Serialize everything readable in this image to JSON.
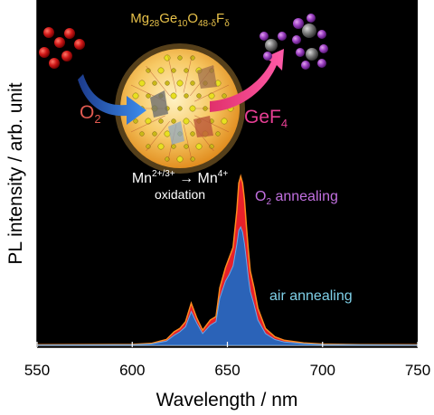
{
  "chart_data": {
    "type": "area",
    "xlabel": "Wavelength / nm",
    "ylabel": "PL intensity / arb. unit",
    "xlim": [
      550,
      750
    ],
    "x_ticks": [
      550,
      600,
      650,
      700,
      750
    ],
    "y_ticks_shown": false,
    "grid": false,
    "background": "black",
    "series": [
      {
        "name": "O2 annealing",
        "color": "#e8202a",
        "x": [
          550,
          600,
          610,
          618,
          622,
          625,
          628,
          631,
          634,
          637,
          641,
          644,
          646,
          649,
          651,
          653,
          655,
          656,
          657,
          658,
          659,
          660,
          661,
          662,
          664,
          666,
          670,
          675,
          680,
          690,
          700,
          720,
          750
        ],
        "y": [
          0.4,
          0.6,
          1.2,
          3.5,
          8.0,
          10.0,
          14.0,
          25.0,
          16.0,
          9.0,
          15.0,
          17.0,
          34.0,
          46.0,
          52.0,
          58.0,
          80.0,
          96.0,
          100.0,
          96.0,
          86.0,
          70.0,
          56.0,
          44.0,
          34.0,
          22.0,
          10.0,
          5.0,
          3.0,
          1.5,
          0.8,
          0.5,
          0.4
        ]
      },
      {
        "name": "air annealing",
        "color": "#2b63b8",
        "x": [
          550,
          600,
          610,
          618,
          622,
          625,
          628,
          631,
          634,
          637,
          641,
          644,
          646,
          649,
          651,
          653,
          655,
          656,
          657,
          658,
          659,
          660,
          661,
          662,
          664,
          666,
          670,
          675,
          680,
          690,
          700,
          720,
          750
        ],
        "y": [
          0.2,
          0.3,
          0.8,
          2.5,
          6.0,
          8.0,
          11.0,
          20.0,
          13.0,
          7.0,
          12.0,
          14.0,
          28.0,
          38.0,
          42.0,
          47.0,
          60.0,
          68.0,
          70.0,
          67.0,
          60.0,
          50.0,
          40.0,
          32.0,
          24.0,
          15.0,
          7.0,
          3.5,
          2.0,
          1.0,
          0.5,
          0.3,
          0.2
        ]
      }
    ],
    "annotations": {
      "formula_main": "Mg",
      "formula_sub1": "28",
      "formula_mid1": "Ge",
      "formula_sub2": "10",
      "formula_mid2": "O",
      "formula_sub3": "48-δ",
      "formula_mid3": "F",
      "formula_sub4": "δ",
      "o2_main": "O",
      "o2_sub": "2",
      "gef_main": "GeF",
      "gef_sub": "4",
      "mn_left": "Mn",
      "mn_left_sup": "2+/3+",
      "mn_arrow": " → ",
      "mn_right": "Mn",
      "mn_right_sup": "4+",
      "oxidation": "oxidation",
      "o2_anneal_main": "O",
      "o2_anneal_sub": "2",
      "o2_anneal_rest": " annealing",
      "air_annealing": "air annealing"
    }
  }
}
